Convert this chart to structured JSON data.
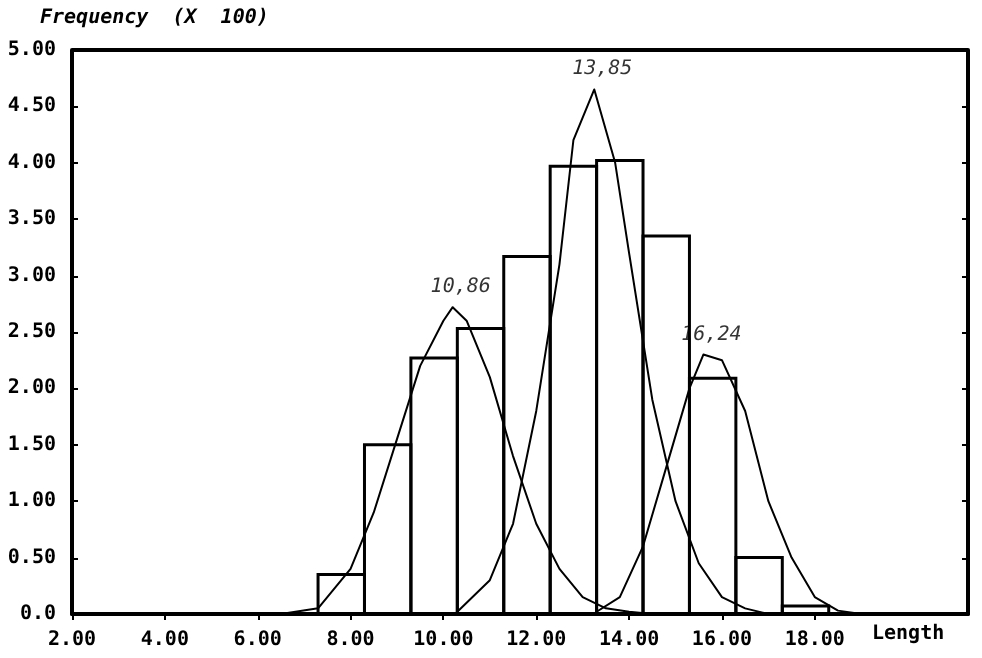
{
  "chart_data": {
    "type": "histogram",
    "xlabel": "Length",
    "ylabel": "Frequency  (X  100)",
    "bins": [
      7.3,
      8.3,
      9.3,
      10.3,
      11.3,
      12.3,
      13.3,
      14.3,
      15.3,
      16.3,
      17.3,
      18.3
    ],
    "values": [
      0.35,
      1.5,
      2.27,
      2.53,
      3.17,
      3.97,
      4.02,
      3.35,
      2.09,
      0.5,
      0.07
    ],
    "color": "#000000",
    "series": [
      {
        "type": "line",
        "color": "#000000",
        "x": [
          6.5,
          7.3,
          8.0,
          8.5,
          9.0,
          9.5,
          10.0,
          10.2,
          10.5,
          11.0,
          11.5,
          12.0,
          12.5,
          13.0,
          13.5,
          14.0,
          14.5
        ],
        "values": [
          0,
          0.05,
          0.4,
          0.9,
          1.55,
          2.2,
          2.6,
          2.72,
          2.6,
          2.1,
          1.4,
          0.8,
          0.4,
          0.15,
          0.05,
          0.02,
          0
        ]
      },
      {
        "type": "line",
        "color": "#000000",
        "x": [
          10.3,
          11.0,
          11.5,
          12.0,
          12.5,
          12.8,
          13.25,
          13.7,
          14.0,
          14.5,
          15.0,
          15.5,
          16.0,
          16.5,
          17.0
        ],
        "values": [
          0.02,
          0.3,
          0.8,
          1.8,
          3.1,
          4.2,
          4.65,
          4.0,
          3.2,
          1.9,
          1.0,
          0.45,
          0.15,
          0.05,
          0
        ]
      },
      {
        "type": "line",
        "color": "#000000",
        "x": [
          13.3,
          13.8,
          14.3,
          14.8,
          15.3,
          15.6,
          16.0,
          16.5,
          17.0,
          17.5,
          18.0,
          18.5,
          19.0
        ],
        "values": [
          0.02,
          0.15,
          0.6,
          1.3,
          2.0,
          2.3,
          2.25,
          1.8,
          1.0,
          0.5,
          0.15,
          0.03,
          0
        ]
      }
    ],
    "annotations": [
      {
        "text": "10,86",
        "x": 10.2,
        "y": 2.72
      },
      {
        "text": "13,85",
        "x": 13.25,
        "y": 4.65
      },
      {
        "text": "16,24",
        "x": 15.6,
        "y": 2.3
      }
    ],
    "xlim": [
      2,
      21.3
    ],
    "xticks": [
      {
        "value": 2,
        "label": "2.00"
      },
      {
        "value": 4,
        "label": "4.00"
      },
      {
        "value": 6,
        "label": "6.00"
      },
      {
        "value": 8,
        "label": "8.00"
      },
      {
        "value": 10,
        "label": "10.00"
      },
      {
        "value": 12,
        "label": "12.00"
      },
      {
        "value": 14,
        "label": "14.00"
      },
      {
        "value": 16,
        "label": "16.00"
      },
      {
        "value": 18,
        "label": "18.00"
      }
    ],
    "ylim": [
      0,
      5
    ],
    "yticks": [
      {
        "value": 0,
        "label": "0.0"
      },
      {
        "value": 0.5,
        "label": "0.50"
      },
      {
        "value": 1,
        "label": "1.00"
      },
      {
        "value": 1.5,
        "label": "1.50"
      },
      {
        "value": 2,
        "label": "2.00"
      },
      {
        "value": 2.5,
        "label": "2.50"
      },
      {
        "value": 3,
        "label": "3.00"
      },
      {
        "value": 3.5,
        "label": "3.50"
      },
      {
        "value": 4,
        "label": "4.00"
      },
      {
        "value": 4.5,
        "label": "4.50"
      },
      {
        "value": 5,
        "label": "5.00"
      }
    ],
    "grid": false
  }
}
